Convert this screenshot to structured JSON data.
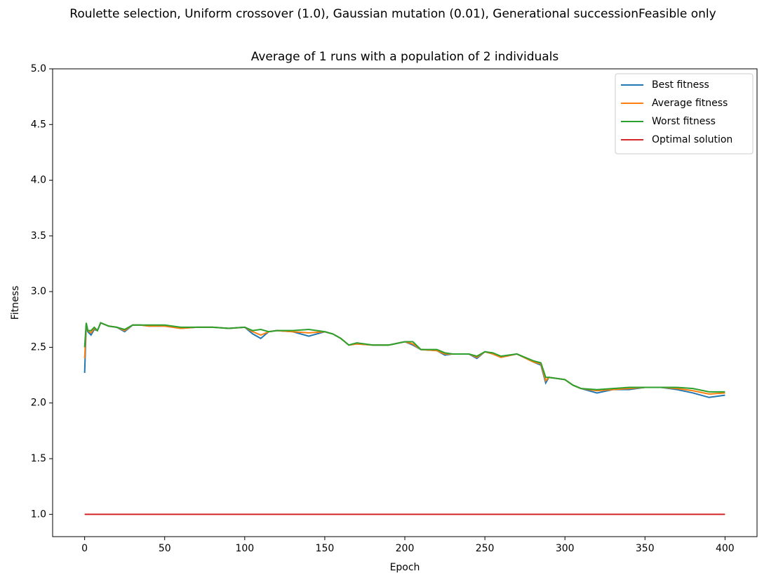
{
  "chart_data": {
    "type": "line",
    "suptitle": "Roulette selection, Uniform crossover (1.0), Gaussian mutation (0.01), Generational successionFeasible only",
    "title": "Average of 1 runs with a population of 2 individuals",
    "x_label": "Epoch",
    "y_label": "Fitness",
    "x": [
      0,
      1,
      2,
      4,
      6,
      8,
      10,
      15,
      20,
      25,
      30,
      35,
      40,
      50,
      60,
      70,
      80,
      90,
      100,
      105,
      110,
      115,
      120,
      130,
      140,
      150,
      155,
      160,
      165,
      170,
      180,
      190,
      200,
      205,
      210,
      220,
      225,
      230,
      240,
      245,
      250,
      255,
      260,
      270,
      280,
      285,
      288,
      290,
      300,
      305,
      310,
      320,
      330,
      340,
      350,
      360,
      370,
      380,
      390,
      400
    ],
    "series": [
      {
        "name": "Best fitness",
        "color": "#1f77b4",
        "values": [
          2.27,
          2.7,
          2.64,
          2.61,
          2.66,
          2.65,
          2.72,
          2.69,
          2.68,
          2.64,
          2.7,
          2.7,
          2.69,
          2.69,
          2.67,
          2.68,
          2.68,
          2.67,
          2.68,
          2.62,
          2.58,
          2.64,
          2.65,
          2.64,
          2.6,
          2.64,
          2.62,
          2.58,
          2.52,
          2.53,
          2.52,
          2.52,
          2.55,
          2.52,
          2.48,
          2.47,
          2.43,
          2.44,
          2.44,
          2.4,
          2.46,
          2.44,
          2.41,
          2.44,
          2.37,
          2.34,
          2.18,
          2.23,
          2.21,
          2.16,
          2.13,
          2.09,
          2.12,
          2.12,
          2.14,
          2.14,
          2.12,
          2.09,
          2.05,
          2.07
        ]
      },
      {
        "name": "Average fitness",
        "color": "#ff7f0e",
        "values": [
          2.4,
          2.71,
          2.65,
          2.63,
          2.67,
          2.65,
          2.72,
          2.69,
          2.68,
          2.65,
          2.7,
          2.7,
          2.69,
          2.69,
          2.67,
          2.68,
          2.68,
          2.67,
          2.68,
          2.64,
          2.61,
          2.64,
          2.65,
          2.64,
          2.63,
          2.64,
          2.62,
          2.58,
          2.52,
          2.53,
          2.52,
          2.52,
          2.55,
          2.53,
          2.48,
          2.47,
          2.44,
          2.44,
          2.44,
          2.41,
          2.46,
          2.44,
          2.41,
          2.44,
          2.37,
          2.35,
          2.2,
          2.23,
          2.21,
          2.16,
          2.13,
          2.11,
          2.12,
          2.13,
          2.14,
          2.14,
          2.13,
          2.11,
          2.08,
          2.09
        ]
      },
      {
        "name": "Worst fitness",
        "color": "#2ca02c",
        "values": [
          2.5,
          2.72,
          2.65,
          2.65,
          2.68,
          2.65,
          2.72,
          2.69,
          2.68,
          2.66,
          2.7,
          2.7,
          2.7,
          2.7,
          2.68,
          2.68,
          2.68,
          2.67,
          2.68,
          2.65,
          2.66,
          2.64,
          2.65,
          2.65,
          2.66,
          2.64,
          2.62,
          2.58,
          2.52,
          2.54,
          2.52,
          2.52,
          2.55,
          2.55,
          2.48,
          2.48,
          2.45,
          2.44,
          2.44,
          2.42,
          2.46,
          2.45,
          2.42,
          2.44,
          2.38,
          2.36,
          2.23,
          2.23,
          2.21,
          2.16,
          2.13,
          2.12,
          2.13,
          2.14,
          2.14,
          2.14,
          2.14,
          2.13,
          2.1,
          2.1
        ]
      },
      {
        "name": "Optimal solution",
        "color": "#d62728",
        "values": [
          1,
          1,
          1,
          1,
          1,
          1,
          1,
          1,
          1,
          1,
          1,
          1,
          1,
          1,
          1,
          1,
          1,
          1,
          1,
          1,
          1,
          1,
          1,
          1,
          1,
          1,
          1,
          1,
          1,
          1,
          1,
          1,
          1,
          1,
          1,
          1,
          1,
          1,
          1,
          1,
          1,
          1,
          1,
          1,
          1,
          1,
          1,
          1,
          1,
          1,
          1,
          1,
          1,
          1,
          1,
          1,
          1,
          1,
          1,
          1
        ]
      }
    ],
    "xlim": [
      -20,
      420
    ],
    "xticks": [
      0,
      50,
      100,
      150,
      200,
      250,
      300,
      350,
      400
    ],
    "ylim": [
      0.8,
      5.0
    ],
    "yticks": [
      {
        "value": 1,
        "label": "1.0"
      },
      {
        "value": 1.5,
        "label": "1.5"
      },
      {
        "value": 2,
        "label": "2.0"
      },
      {
        "value": 2.5,
        "label": "2.5"
      },
      {
        "value": 3,
        "label": "3.0"
      },
      {
        "value": 3.5,
        "label": "3.5"
      },
      {
        "value": 4,
        "label": "4.0"
      },
      {
        "value": 4.5,
        "label": "4.5"
      },
      {
        "value": 5,
        "label": "5.0"
      }
    ],
    "legend": "upper right"
  }
}
